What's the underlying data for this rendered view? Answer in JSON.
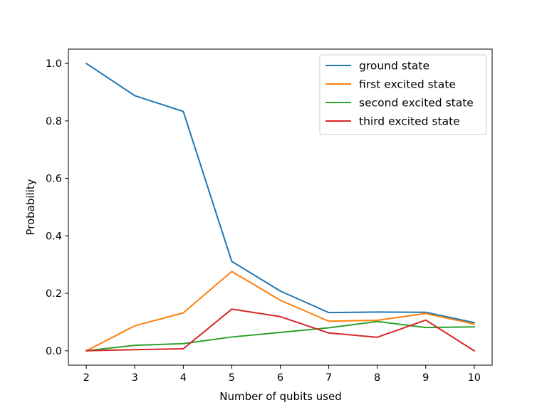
{
  "chart_data": {
    "type": "line",
    "title": "",
    "xlabel": "Number of qubits used",
    "ylabel": "Probability",
    "x": [
      2,
      3,
      4,
      5,
      6,
      7,
      8,
      9,
      10
    ],
    "xlim": [
      1.63,
      10.37
    ],
    "ylim": [
      -0.05,
      1.05
    ],
    "xticks": [
      "2",
      "3",
      "4",
      "5",
      "6",
      "7",
      "8",
      "9",
      "10"
    ],
    "yticks": [
      "0.0",
      "0.2",
      "0.4",
      "0.6",
      "0.8",
      "1.0"
    ],
    "grid": false,
    "legend_position": "upper right",
    "series": [
      {
        "name": "ground state",
        "color": "#1f77b4",
        "values": [
          1.0,
          0.888,
          0.833,
          0.311,
          0.208,
          0.133,
          0.135,
          0.134,
          0.098
        ]
      },
      {
        "name": "first excited state",
        "color": "#ff7f0e",
        "values": [
          0.0,
          0.087,
          0.132,
          0.276,
          0.176,
          0.103,
          0.106,
          0.13,
          0.093
        ]
      },
      {
        "name": "second excited state",
        "color": "#2ca02c",
        "values": [
          0.0,
          0.019,
          0.025,
          0.048,
          0.064,
          0.08,
          0.102,
          0.081,
          0.083
        ]
      },
      {
        "name": "third excited state",
        "color": "#d62728",
        "values": [
          0.0,
          0.004,
          0.007,
          0.145,
          0.119,
          0.062,
          0.047,
          0.107,
          0.0
        ]
      }
    ]
  }
}
